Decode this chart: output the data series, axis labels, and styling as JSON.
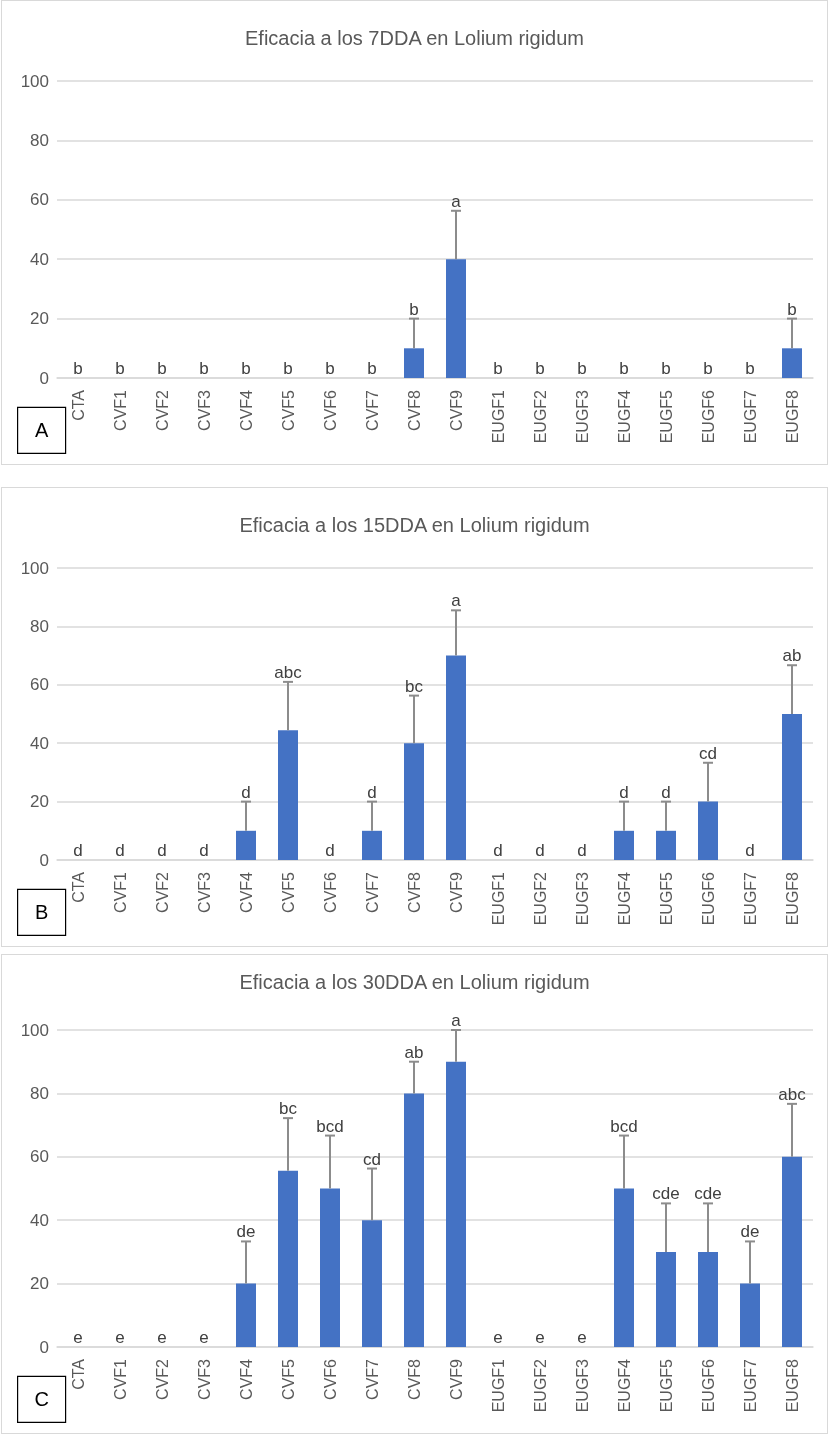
{
  "chart_data": [
    {
      "type": "bar",
      "title": "Eficacia a los 7DDA en Lolium rigidum",
      "categories": [
        "CTA",
        "CVF1",
        "CVF2",
        "CVF3",
        "CVF4",
        "CVF5",
        "CVF6",
        "CVF7",
        "CVF8",
        "CVF9",
        "EUGF1",
        "EUGF2",
        "EUGF3",
        "EUGF4",
        "EUGF5",
        "EUGF6",
        "EUGF7",
        "EUGF8"
      ],
      "values": [
        0,
        0,
        0,
        0,
        0,
        0,
        0,
        0,
        10,
        40,
        0,
        0,
        0,
        0,
        0,
        0,
        0,
        10
      ],
      "errors": [
        null,
        null,
        null,
        null,
        null,
        null,
        null,
        null,
        [
          10,
          20
        ],
        [
          40,
          56.3
        ],
        null,
        null,
        null,
        null,
        null,
        null,
        null,
        [
          10,
          20
        ]
      ],
      "value_labels": [
        "b",
        "b",
        "b",
        "b",
        "b",
        "b",
        "b",
        "b",
        "b",
        "a",
        "b",
        "b",
        "b",
        "b",
        "b",
        "b",
        "b",
        "b"
      ],
      "color": "#4472c4",
      "ylim": [
        0,
        100
      ],
      "yticks": [
        0,
        20,
        40,
        60,
        80,
        100
      ],
      "grid": "y",
      "annotations": [
        "A"
      ]
    },
    {
      "type": "bar",
      "title": "Eficacia a los 15DDA en Lolium rigidum",
      "categories": [
        "CTA",
        "CVF1",
        "CVF2",
        "CVF3",
        "CVF4",
        "CVF5",
        "CVF6",
        "CVF7",
        "CVF8",
        "CVF9",
        "EUGF1",
        "EUGF2",
        "EUGF3",
        "EUGF4",
        "EUGF5",
        "EUGF6",
        "EUGF7",
        "EUGF8"
      ],
      "values": [
        0,
        0,
        0,
        0,
        10,
        44.4,
        0,
        10,
        40,
        70,
        0,
        0,
        0,
        10,
        10,
        20,
        0,
        50
      ],
      "errors": [
        null,
        null,
        null,
        null,
        [
          10,
          20
        ],
        [
          44.4,
          61
        ],
        null,
        [
          10,
          20
        ],
        [
          40,
          56.3
        ],
        [
          70,
          85.5
        ],
        null,
        null,
        null,
        [
          10,
          20
        ],
        [
          10,
          20
        ],
        [
          20,
          33.3
        ],
        null,
        [
          50,
          66.7
        ]
      ],
      "value_labels": [
        "d",
        "d",
        "d",
        "d",
        "d",
        "abc",
        "d",
        "d",
        "bc",
        "a",
        "d",
        "d",
        "d",
        "d",
        "d",
        "cd",
        "d",
        "ab"
      ],
      "color": "#4472c4",
      "ylim": [
        0,
        100
      ],
      "yticks": [
        0,
        20,
        40,
        60,
        80,
        100
      ],
      "grid": "y",
      "annotations": [
        "B"
      ]
    },
    {
      "type": "bar",
      "title": "Eficacia a los 30DDA en Lolium rigidum",
      "categories": [
        "CTA",
        "CVF1",
        "CVF2",
        "CVF3",
        "CVF4",
        "CVF5",
        "CVF6",
        "CVF7",
        "CVF8",
        "CVF9",
        "EUGF1",
        "EUGF2",
        "EUGF3",
        "EUGF4",
        "EUGF5",
        "EUGF6",
        "EUGF7",
        "EUGF8"
      ],
      "values": [
        0,
        0,
        0,
        0,
        20,
        55.6,
        50,
        40,
        80,
        90,
        0,
        0,
        0,
        50,
        30,
        30,
        20,
        60
      ],
      "errors": [
        null,
        null,
        null,
        null,
        [
          20,
          33.3
        ],
        [
          55.6,
          72.2
        ],
        [
          50,
          66.7
        ],
        [
          40,
          56.3
        ],
        [
          80,
          90
        ],
        [
          90,
          100
        ],
        null,
        null,
        null,
        [
          50,
          66.7
        ],
        [
          30,
          45.3
        ],
        [
          30,
          45.3
        ],
        [
          20,
          33.3
        ],
        [
          60,
          76.7
        ]
      ],
      "value_labels": [
        "e",
        "e",
        "e",
        "e",
        "de",
        "bc",
        "bcd",
        "cd",
        "ab",
        "a",
        "e",
        "e",
        "e",
        "bcd",
        "cde",
        "cde",
        "de",
        "abc"
      ],
      "color": "#4472c4",
      "ylim": [
        0,
        100
      ],
      "yticks": [
        0,
        20,
        40,
        60,
        80,
        100
      ],
      "grid": "y",
      "annotations": [
        "C"
      ]
    }
  ]
}
